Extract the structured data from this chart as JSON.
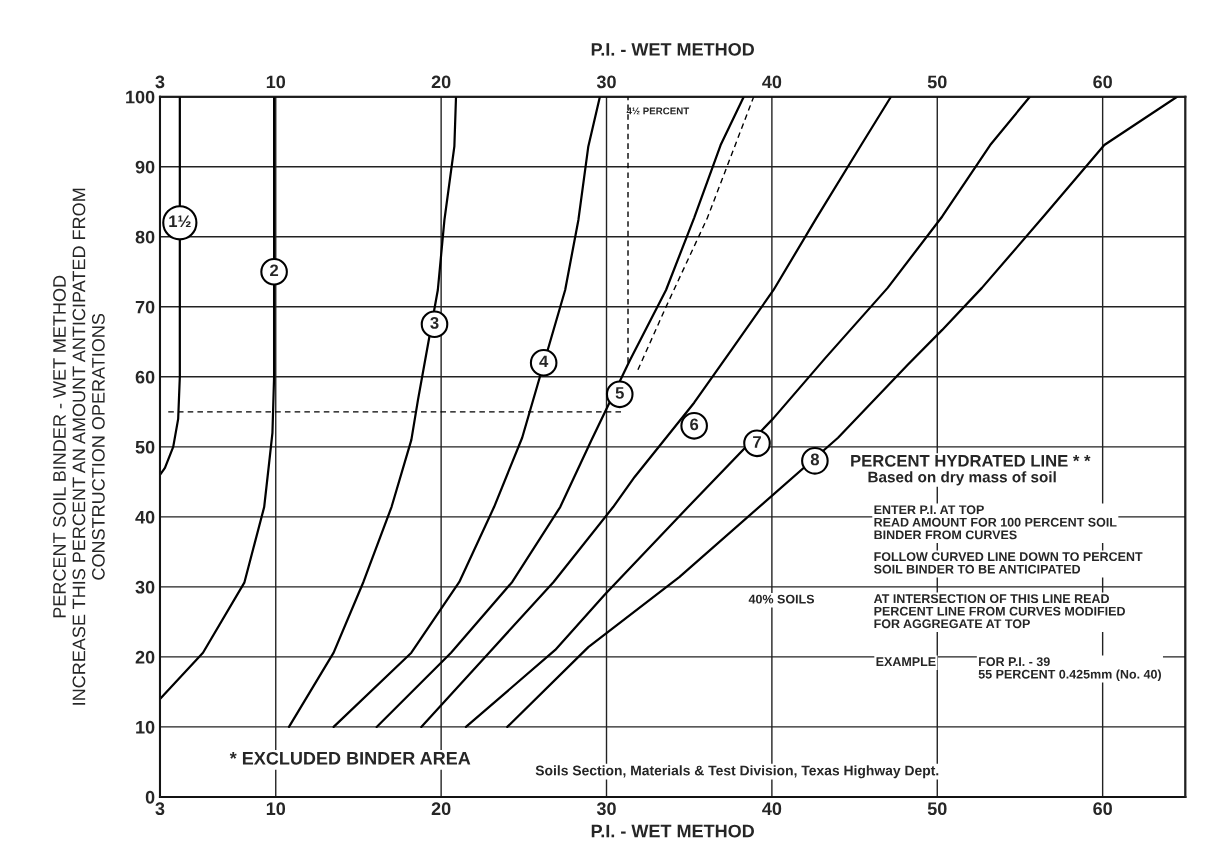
{
  "chart_data": {
    "type": "line",
    "xlabel": "P.I. - WET METHOD",
    "x2label": "P.I. - WET METHOD",
    "ylabel": "PERCENT SOIL BINDER - WET METHOD\nINCREASE THIS PERCENT AN AMOUNT ANTICIPATED FROM\nCONSTRUCTION OPERATIONS",
    "xlim": [
      3,
      65
    ],
    "xticks": [
      3,
      10,
      20,
      30,
      40,
      50,
      60
    ],
    "x2lim": [
      3,
      65
    ],
    "x2ticks": [
      3,
      10,
      20,
      30,
      40,
      50,
      60
    ],
    "ylim": [
      0,
      100
    ],
    "yticks": [
      0,
      10,
      20,
      30,
      40,
      50,
      60,
      70,
      80,
      90,
      100
    ],
    "grid": true,
    "series": [
      {
        "color": "#000000",
        "x": [
          3.0,
          3.3,
          3.8,
          4.1,
          4.2,
          4.2
        ],
        "values": [
          46,
          47,
          50,
          54,
          60,
          100
        ]
      },
      {
        "color": "#000000",
        "x": [
          3.0,
          5.6,
          8.1,
          9.3,
          9.6,
          9.8,
          9.9,
          9.9
        ],
        "values": [
          14,
          20.6,
          30.6,
          41.4,
          47.7,
          52,
          60,
          100
        ]
      },
      {
        "color": "#000000",
        "x": [
          10.8,
          13.5,
          15.3,
          17.0,
          18.2,
          18.6,
          19.8,
          20.2,
          20.8,
          20.9
        ],
        "values": [
          10,
          20.6,
          30.7,
          41.4,
          51,
          56.7,
          72.4,
          82.4,
          92.9,
          100
        ]
      },
      {
        "color": "#000000",
        "x": [
          13.5,
          18.2,
          21.1,
          23.2,
          24.9,
          27.5,
          28.3,
          28.9,
          29.6
        ],
        "values": [
          10,
          20.6,
          30.7,
          41.4,
          51.3,
          72.4,
          82.4,
          92.9,
          100
        ]
      },
      {
        "color": "#000000",
        "x": [
          16.1,
          20.6,
          24.3,
          27.2,
          29.1,
          31.4,
          33.6,
          35.3,
          36.9,
          38.3
        ],
        "values": [
          10,
          20.6,
          30.7,
          41.4,
          51,
          62.3,
          72.4,
          82.7,
          93.1,
          100
        ]
      },
      {
        "color": "#000000",
        "x": [
          18.8,
          22.9,
          26.8,
          30.4,
          31.7,
          35.3,
          37.6,
          40.1,
          42.7,
          45.4,
          47.2
        ],
        "values": [
          10,
          20.6,
          30.7,
          41.4,
          45.7,
          56.3,
          64,
          72.4,
          82.7,
          93.1,
          100
        ]
      },
      {
        "color": "#000000",
        "x": [
          21.5,
          26.9,
          29.9,
          34.4,
          40.1,
          43.2,
          47,
          50.3,
          53.2,
          55.6
        ],
        "values": [
          10,
          21,
          28.9,
          40.1,
          54.1,
          62.6,
          72.7,
          82.9,
          93.1,
          100
        ]
      },
      {
        "color": "#000000",
        "x": [
          24.0,
          28.9,
          34.4,
          44,
          48.2,
          50.3,
          52.7,
          56.5,
          60.1,
          64.5
        ],
        "values": [
          10,
          21.4,
          31.4,
          51.3,
          61.7,
          66.7,
          72.7,
          83.1,
          93.1,
          100
        ]
      },
      {
        "color": "#000000",
        "line_style": "dashed",
        "x": [
          31.9,
          33.6,
          36.1,
          38.9
        ],
        "values": [
          61,
          70,
          82.7,
          100
        ]
      },
      {
        "color": "#000000",
        "line_style": "dashed",
        "x": [
          3.5,
          31.0
        ],
        "values": [
          55,
          55
        ]
      },
      {
        "color": "#000000",
        "line_style": "dashed",
        "x": [
          31.3,
          31.3
        ],
        "values": [
          62,
          100
        ]
      }
    ],
    "annotations": [
      {
        "text": "1½",
        "x": 4.2,
        "y": 82
      },
      {
        "text": "2",
        "x": 9.9,
        "y": 75
      },
      {
        "text": "3",
        "x": 19.6,
        "y": 67.5
      },
      {
        "text": "4",
        "x": 26.2,
        "y": 62
      },
      {
        "text": "5",
        "x": 30.8,
        "y": 57.5
      },
      {
        "text": "6",
        "x": 35.3,
        "y": 53
      },
      {
        "text": "7",
        "x": 39.1,
        "y": 50.5
      },
      {
        "text": "8",
        "x": 42.6,
        "y": 48
      },
      "4½ PERCENT",
      "PERCENT HYDRATED LINE * *",
      "Based on dry mass of soil",
      "ENTER P.I. AT TOP\nREAD AMOUNT FOR 100 PERCENT SOIL\nBINDER FROM CURVES",
      "FOLLOW CURVED LINE DOWN TO PERCENT\nSOIL BINDER TO BE ANTICIPATED",
      "AT INTERSECTION OF THIS LINE READ\nPERCENT LINE FROM CURVES MODIFIED\nFOR AGGREGATE AT TOP",
      "EXAMPLE",
      "FOR P.I. - 39\n55 PERCENT 0.425mm (No. 40)",
      "40% SOILS",
      "* EXCLUDED BINDER AREA",
      "Soils Section, Materials & Test Division, Texas Highway Dept."
    ]
  }
}
